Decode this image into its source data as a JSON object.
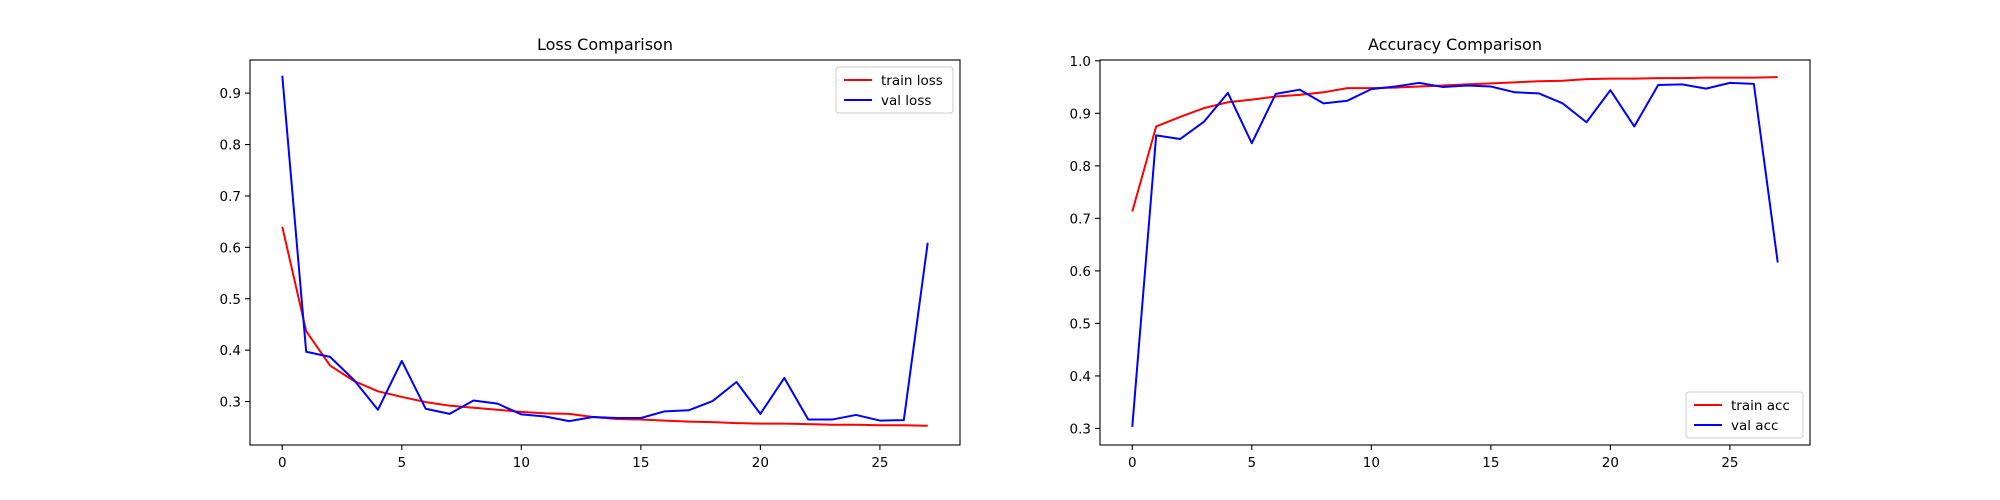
{
  "chart_data": [
    {
      "type": "line",
      "title": "Loss Comparison",
      "xlabel": "",
      "ylabel": "",
      "xlim": [
        -1.35,
        28.35
      ],
      "ylim": [
        0.2155,
        0.9645
      ],
      "xticks": [
        0,
        5,
        10,
        15,
        20,
        25
      ],
      "yticks": [
        0.3,
        0.4,
        0.5,
        0.6,
        0.7,
        0.8,
        0.9
      ],
      "ytick_labels": [
        "0.3",
        "0.4",
        "0.5",
        "0.6",
        "0.7",
        "0.8",
        "0.9"
      ],
      "grid": false,
      "legend_position": "upper right",
      "x": [
        0,
        1,
        2,
        3,
        4,
        5,
        6,
        7,
        8,
        9,
        10,
        11,
        12,
        13,
        14,
        15,
        16,
        17,
        18,
        19,
        20,
        21,
        22,
        23,
        24,
        25,
        26,
        27
      ],
      "series": [
        {
          "name": "train loss",
          "color": "#ff0000",
          "values": [
            0.64,
            0.437,
            0.37,
            0.34,
            0.32,
            0.309,
            0.299,
            0.292,
            0.288,
            0.284,
            0.28,
            0.277,
            0.276,
            0.27,
            0.266,
            0.265,
            0.263,
            0.261,
            0.26,
            0.258,
            0.257,
            0.257,
            0.256,
            0.255,
            0.255,
            0.254,
            0.254,
            0.253
          ]
        },
        {
          "name": "val loss",
          "color": "#0000ff",
          "values": [
            0.934,
            0.397,
            0.387,
            0.342,
            0.284,
            0.379,
            0.286,
            0.276,
            0.302,
            0.296,
            0.275,
            0.271,
            0.262,
            0.27,
            0.268,
            0.268,
            0.281,
            0.283,
            0.301,
            0.338,
            0.276,
            0.346,
            0.265,
            0.265,
            0.274,
            0.263,
            0.264,
            0.609
          ]
        }
      ]
    },
    {
      "type": "line",
      "title": "Accuracy Comparison",
      "xlabel": "",
      "ylabel": "",
      "xlim": [
        -1.35,
        28.35
      ],
      "ylim": [
        0.2685,
        1.0015
      ],
      "xticks": [
        0,
        5,
        10,
        15,
        20,
        25
      ],
      "yticks": [
        0.3,
        0.4,
        0.5,
        0.6,
        0.7,
        0.8,
        0.9,
        1.0
      ],
      "ytick_labels": [
        "0.3",
        "0.4",
        "0.5",
        "0.6",
        "0.7",
        "0.8",
        "0.9",
        "1.0"
      ],
      "grid": false,
      "legend_position": "lower right",
      "x": [
        0,
        1,
        2,
        3,
        4,
        5,
        6,
        7,
        8,
        9,
        10,
        11,
        12,
        13,
        14,
        15,
        16,
        17,
        18,
        19,
        20,
        21,
        22,
        23,
        24,
        25,
        26,
        27
      ],
      "series": [
        {
          "name": "train acc",
          "color": "#ff0000",
          "values": [
            0.713,
            0.875,
            0.893,
            0.91,
            0.921,
            0.926,
            0.932,
            0.935,
            0.94,
            0.948,
            0.948,
            0.949,
            0.951,
            0.953,
            0.955,
            0.957,
            0.959,
            0.961,
            0.962,
            0.965,
            0.966,
            0.966,
            0.967,
            0.967,
            0.968,
            0.968,
            0.968,
            0.969
          ]
        },
        {
          "name": "val acc",
          "color": "#0000ff",
          "values": [
            0.303,
            0.858,
            0.851,
            0.884,
            0.939,
            0.843,
            0.937,
            0.945,
            0.919,
            0.924,
            0.946,
            0.951,
            0.958,
            0.95,
            0.953,
            0.951,
            0.94,
            0.938,
            0.919,
            0.883,
            0.944,
            0.875,
            0.954,
            0.955,
            0.947,
            0.958,
            0.956,
            0.616
          ]
        }
      ]
    }
  ]
}
